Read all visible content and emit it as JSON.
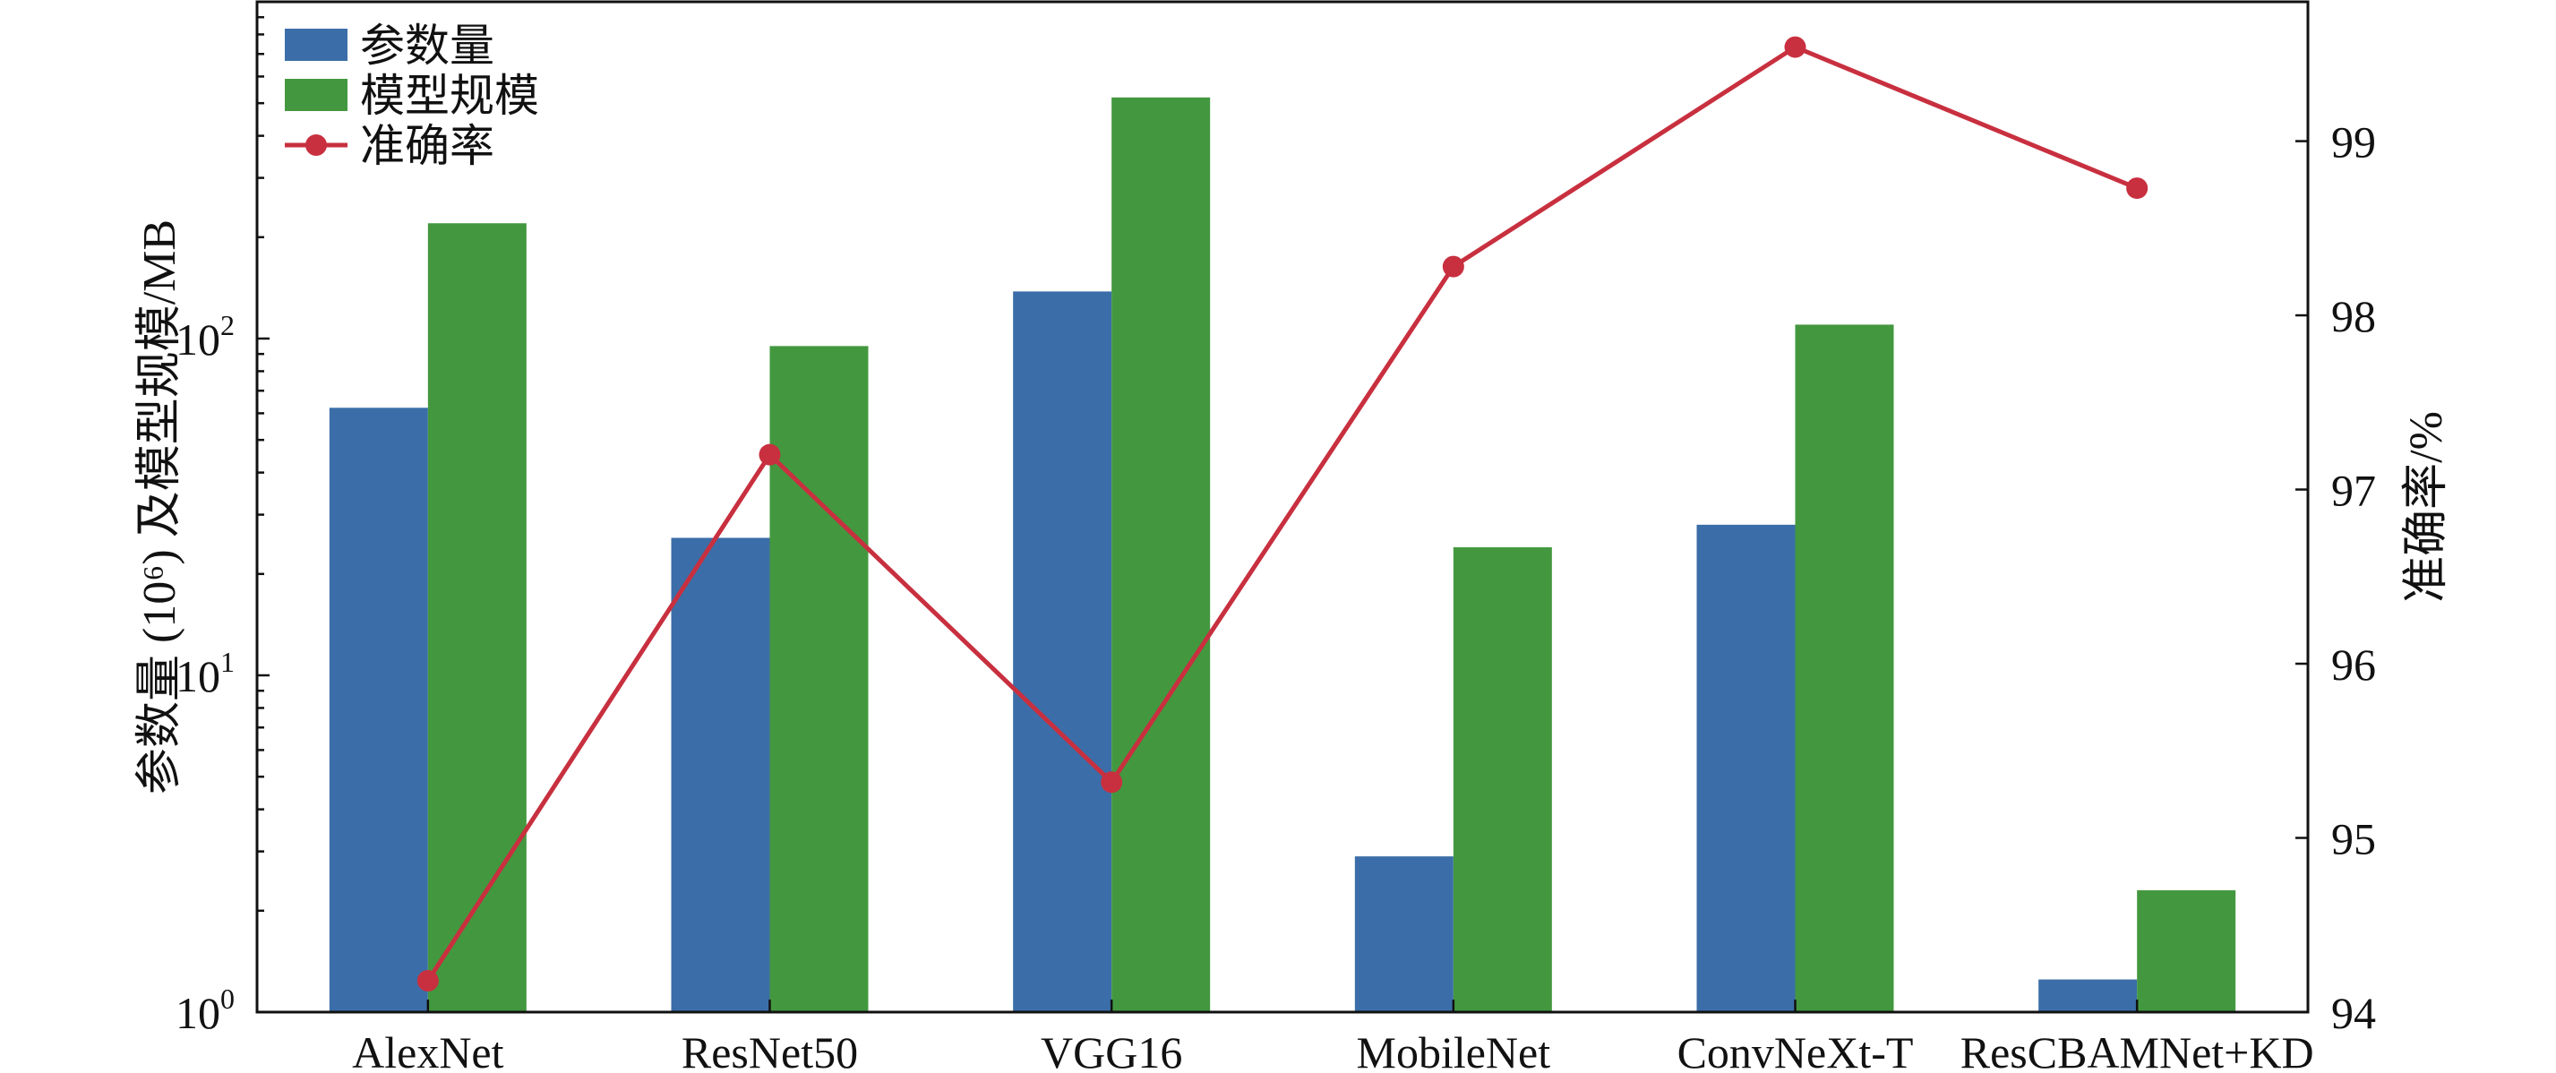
{
  "chart_data": {
    "type": "bar",
    "categories": [
      "AlexNet",
      "ResNet50",
      "VGG16",
      "MobileNet",
      "ConvNeXt-T",
      "ResCBAMNet+KD"
    ],
    "series": [
      {
        "name": "参数量",
        "type": "bar",
        "axis": "left",
        "color": "#3b6ea8",
        "values": [
          62.3,
          25.6,
          138,
          2.9,
          28,
          1.25
        ]
      },
      {
        "name": "模型规模",
        "type": "bar",
        "axis": "left",
        "color": "#43983f",
        "values": [
          220,
          95,
          520,
          24,
          110,
          2.3
        ]
      },
      {
        "name": "准确率",
        "type": "line",
        "axis": "right",
        "color": "#c8303f",
        "values": [
          94.18,
          97.2,
          95.32,
          98.28,
          99.54,
          98.73
        ]
      }
    ],
    "ylabel": "参数量 (10⁶) 及模型规模/MB",
    "y2label": "准确率/%",
    "yscale": "log",
    "ylim": [
      1,
      1000
    ],
    "y2lim": [
      94,
      99.8
    ],
    "yticks": [
      {
        "base": "10",
        "exp": "0",
        "value": 1
      },
      {
        "base": "10",
        "exp": "1",
        "value": 10
      },
      {
        "base": "10",
        "exp": "2",
        "value": 100
      }
    ],
    "y2ticks": [
      "94",
      "95",
      "96",
      "97",
      "98",
      "99"
    ],
    "legend": "top-left",
    "grid": false
  }
}
